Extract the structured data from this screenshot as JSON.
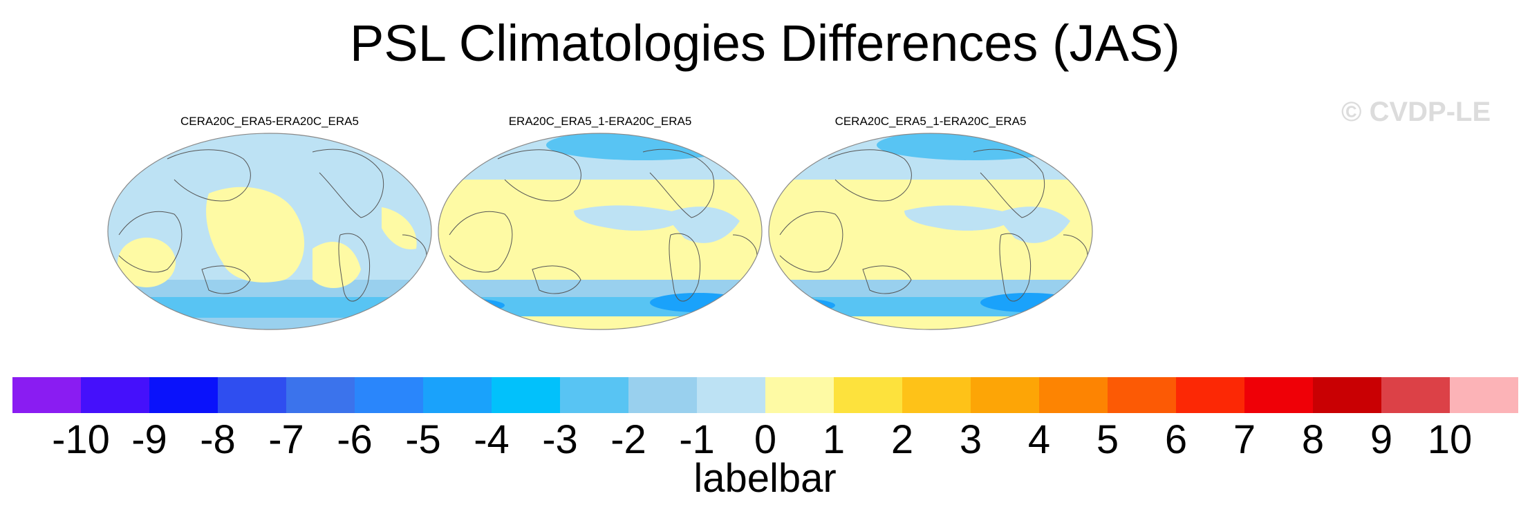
{
  "title": "PSL Climatologies Differences (JAS)",
  "watermark": "© CVDP-LE",
  "panels": [
    {
      "label": "CERA20C_ERA5-ERA20C_ERA5"
    },
    {
      "label": "ERA20C_ERA5_1-ERA20C_ERA5"
    },
    {
      "label": "CERA20C_ERA5_1-ERA20C_ERA5"
    }
  ],
  "labelbar": {
    "title": "labelbar",
    "ticks": [
      "-10",
      "-9",
      "-8",
      "-7",
      "-6",
      "-5",
      "-4",
      "-3",
      "-2",
      "-1",
      "0",
      "1",
      "2",
      "3",
      "4",
      "5",
      "6",
      "7",
      "8",
      "9",
      "10"
    ],
    "colors": [
      "#8a1cf2",
      "#4510fb",
      "#0a12fb",
      "#2f4ef0",
      "#3b73ec",
      "#2a86fb",
      "#1aa2fb",
      "#02c1fb",
      "#58c4f3",
      "#99d0ee",
      "#bde2f4",
      "#fefaa4",
      "#fde23d",
      "#fec218",
      "#fda506",
      "#fd8402",
      "#fc5a05",
      "#fc2805",
      "#ef0007",
      "#c90003",
      "#dc4147",
      "#fcb3b7"
    ]
  },
  "map_colors": {
    "ocean_neg": "#bde2f4",
    "pos": "#fefaa4",
    "neg2": "#99d0ee",
    "neg3": "#58c4f3",
    "neg4": "#1aa2fb",
    "coast": "#555555"
  }
}
